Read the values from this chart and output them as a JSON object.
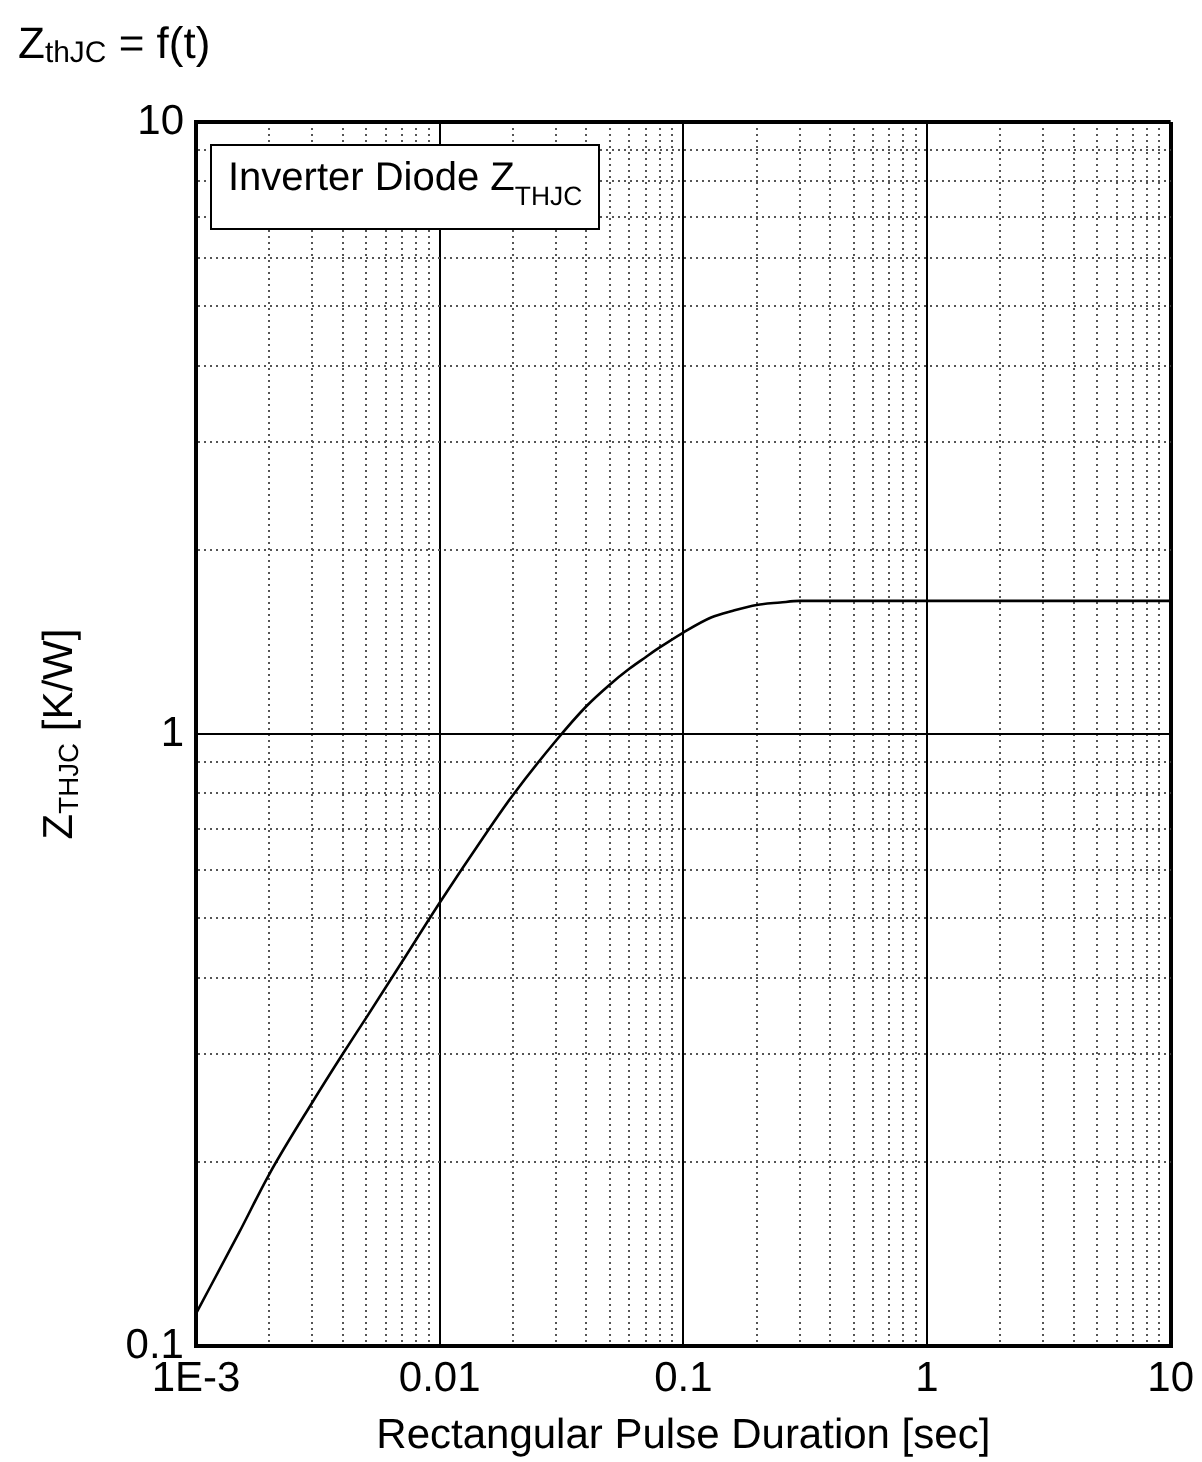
{
  "chart_data": {
    "type": "line",
    "title": "Z$_{thJC}$ = f(t)",
    "xlabel": "Rectangular Pulse Duration [sec]",
    "ylabel": "Z$_{THJC}$ [K/W]",
    "log": "xy",
    "x": [
      0.001,
      0.0015,
      0.002,
      0.003,
      0.004,
      0.005,
      0.007,
      0.01,
      0.015,
      0.02,
      0.03,
      0.04,
      0.05,
      0.06,
      0.07,
      0.08,
      0.1,
      0.13,
      0.16,
      0.2,
      0.25,
      0.3,
      0.5,
      1,
      10
    ],
    "series": [
      {
        "name": "Inverter Diode Z$_{THJC}$",
        "color": "#000000",
        "values": [
          0.113,
          0.153,
          0.191,
          0.25,
          0.3,
          0.344,
          0.424,
          0.53,
          0.675,
          0.795,
          0.975,
          1.11,
          1.205,
          1.278,
          1.335,
          1.385,
          1.465,
          1.55,
          1.59,
          1.625,
          1.64,
          1.65,
          1.65,
          1.65,
          1.65
        ]
      }
    ],
    "xlim": [
      0.001,
      10
    ],
    "ylim": [
      0.1,
      10
    ],
    "xticks": [
      {
        "value": 0.001,
        "label": "1E-3"
      },
      {
        "value": 0.002,
        "label": null
      },
      {
        "value": 0.003,
        "label": null
      },
      {
        "value": 0.004,
        "label": null
      },
      {
        "value": 0.005,
        "label": null
      },
      {
        "value": 0.006,
        "label": null
      },
      {
        "value": 0.007,
        "label": null
      },
      {
        "value": 0.008,
        "label": null
      },
      {
        "value": 0.009,
        "label": null
      },
      0.01,
      {
        "value": 0.02,
        "label": null
      },
      {
        "value": 0.03,
        "label": null
      },
      {
        "value": 0.04,
        "label": null
      },
      {
        "value": 0.05,
        "label": null
      },
      {
        "value": 0.06,
        "label": null
      },
      {
        "value": 0.07,
        "label": null
      },
      {
        "value": 0.08,
        "label": null
      },
      {
        "value": 0.09,
        "label": null
      },
      0.1,
      {
        "value": 0.2,
        "label": null
      },
      {
        "value": 0.3,
        "label": null
      },
      {
        "value": 0.4,
        "label": null
      },
      {
        "value": 0.5,
        "label": null
      },
      {
        "value": 0.6,
        "label": null
      },
      {
        "value": 0.7,
        "label": null
      },
      {
        "value": 0.8,
        "label": null
      },
      {
        "value": 0.9,
        "label": null
      },
      1,
      {
        "value": 2,
        "label": null
      },
      {
        "value": 3,
        "label": null
      },
      {
        "value": 4,
        "label": null
      },
      {
        "value": 5,
        "label": null
      },
      {
        "value": 6,
        "label": null
      },
      {
        "value": 7,
        "label": null
      },
      {
        "value": 8,
        "label": null
      },
      {
        "value": 9,
        "label": null
      },
      10
    ],
    "yticks": [
      0.1,
      {
        "value": 0.2,
        "label": null
      },
      {
        "value": 0.3,
        "label": null
      },
      {
        "value": 0.4,
        "label": null
      },
      {
        "value": 0.5,
        "label": null
      },
      {
        "value": 0.6,
        "label": null
      },
      {
        "value": 0.7,
        "label": null
      },
      {
        "value": 0.8,
        "label": null
      },
      {
        "value": 0.9,
        "label": null
      },
      1,
      {
        "value": 2,
        "label": null
      },
      {
        "value": 3,
        "label": null
      },
      {
        "value": 4,
        "label": null
      },
      {
        "value": 5,
        "label": null
      },
      {
        "value": 6,
        "label": null
      },
      {
        "value": 7,
        "label": null
      },
      {
        "value": 8,
        "label": null
      },
      {
        "value": 9,
        "label": null
      },
      10
    ],
    "grid": true,
    "legend": "top left"
  }
}
